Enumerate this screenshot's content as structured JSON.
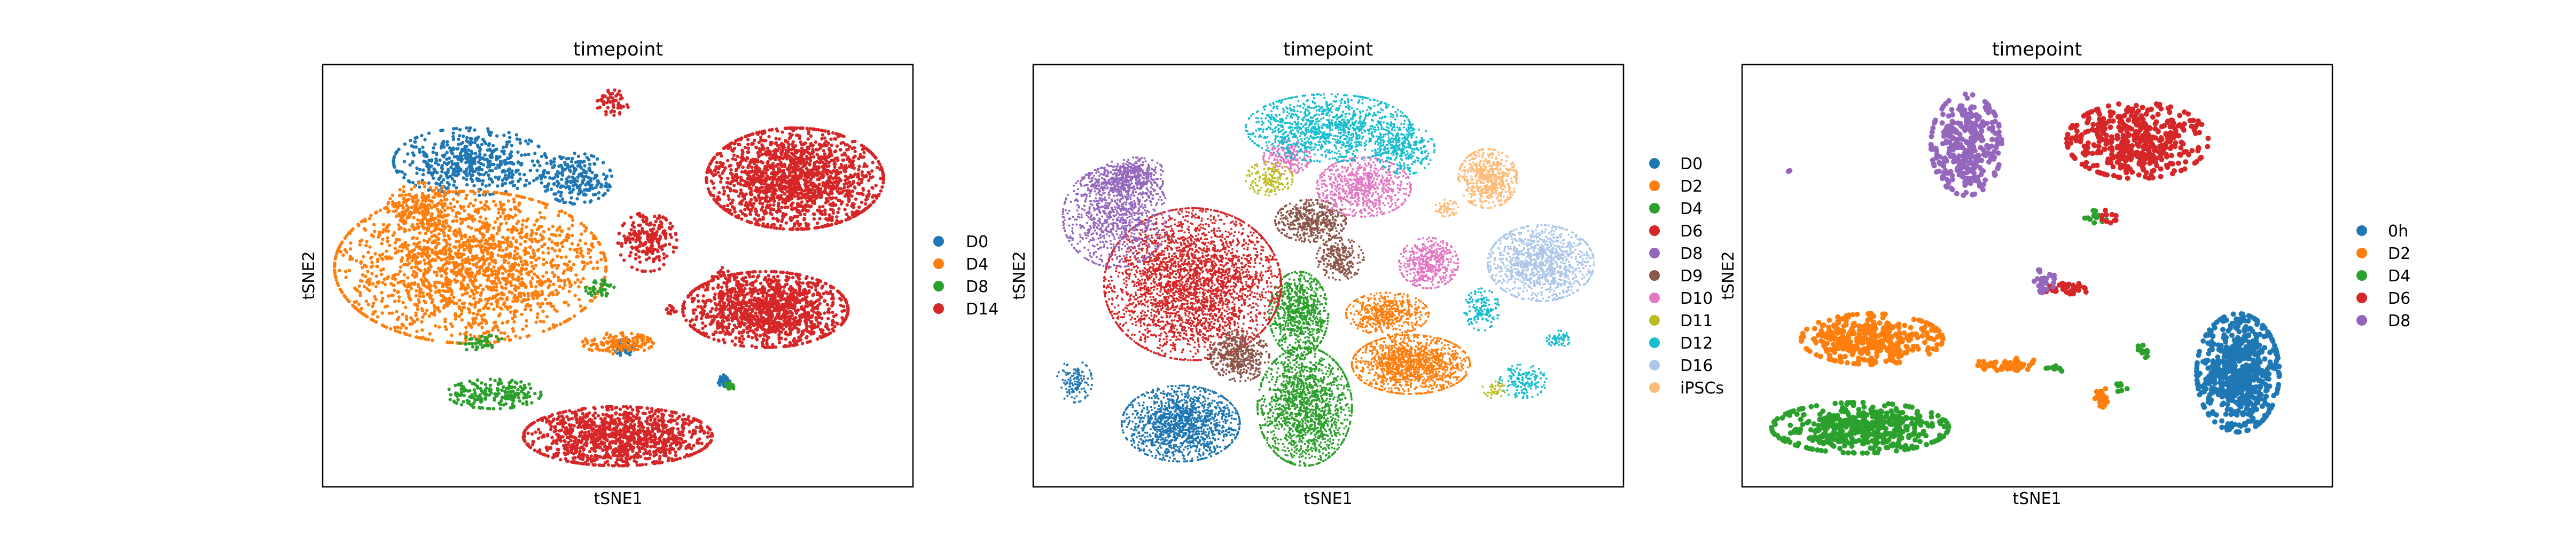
{
  "chart_data": [
    {
      "type": "scatter",
      "title": "timepoint",
      "xlabel": "tSNE1",
      "ylabel": "tSNE2",
      "grid": false,
      "legend_position": "right",
      "series": [
        {
          "name": "D0",
          "color": "#1f77b4",
          "clusters": [
            {
              "x": 0.25,
              "y": 0.77,
              "rx": 0.13,
              "ry": 0.08,
              "n": 520
            },
            {
              "x": 0.43,
              "y": 0.73,
              "rx": 0.06,
              "ry": 0.06,
              "n": 220
            },
            {
              "x": 0.51,
              "y": 0.33,
              "rx": 0.02,
              "ry": 0.02,
              "n": 50
            },
            {
              "x": 0.68,
              "y": 0.25,
              "rx": 0.01,
              "ry": 0.015,
              "n": 40
            }
          ]
        },
        {
          "name": "D4",
          "color": "#ff7f0e",
          "clusters": [
            {
              "x": 0.25,
              "y": 0.52,
              "rx": 0.23,
              "ry": 0.18,
              "n": 1900
            },
            {
              "x": 0.17,
              "y": 0.66,
              "rx": 0.06,
              "ry": 0.06,
              "n": 200
            },
            {
              "x": 0.5,
              "y": 0.34,
              "rx": 0.06,
              "ry": 0.025,
              "n": 150
            }
          ]
        },
        {
          "name": "D8",
          "color": "#2ca02c",
          "clusters": [
            {
              "x": 0.29,
              "y": 0.22,
              "rx": 0.08,
              "ry": 0.035,
              "n": 200
            },
            {
              "x": 0.47,
              "y": 0.47,
              "rx": 0.025,
              "ry": 0.02,
              "n": 40
            },
            {
              "x": 0.27,
              "y": 0.34,
              "rx": 0.04,
              "ry": 0.02,
              "n": 40
            },
            {
              "x": 0.69,
              "y": 0.24,
              "rx": 0.01,
              "ry": 0.01,
              "n": 20
            }
          ]
        },
        {
          "name": "D14",
          "color": "#d62728",
          "clusters": [
            {
              "x": 0.8,
              "y": 0.73,
              "rx": 0.15,
              "ry": 0.12,
              "n": 1700
            },
            {
              "x": 0.75,
              "y": 0.42,
              "rx": 0.14,
              "ry": 0.09,
              "n": 1300
            },
            {
              "x": 0.5,
              "y": 0.12,
              "rx": 0.16,
              "ry": 0.07,
              "n": 1200
            },
            {
              "x": 0.55,
              "y": 0.58,
              "rx": 0.05,
              "ry": 0.07,
              "n": 220
            },
            {
              "x": 0.49,
              "y": 0.91,
              "rx": 0.03,
              "ry": 0.03,
              "n": 60
            },
            {
              "x": 0.59,
              "y": 0.42,
              "rx": 0.01,
              "ry": 0.01,
              "n": 15
            },
            {
              "x": 0.68,
              "y": 0.5,
              "rx": 0.02,
              "ry": 0.02,
              "n": 20
            }
          ]
        }
      ]
    },
    {
      "type": "scatter",
      "title": "timepoint",
      "xlabel": "tSNE1",
      "ylabel": "tSNE2",
      "grid": false,
      "legend_position": "right",
      "series": [
        {
          "name": "D0",
          "color": "#1f77b4",
          "clusters": [
            {
              "x": 0.25,
              "y": 0.15,
              "rx": 0.1,
              "ry": 0.09,
              "n": 1400
            },
            {
              "x": 0.07,
              "y": 0.25,
              "rx": 0.03,
              "ry": 0.05,
              "n": 120
            }
          ]
        },
        {
          "name": "D2",
          "color": "#ff7f0e",
          "clusters": [
            {
              "x": 0.64,
              "y": 0.29,
              "rx": 0.1,
              "ry": 0.07,
              "n": 1300
            },
            {
              "x": 0.6,
              "y": 0.41,
              "rx": 0.07,
              "ry": 0.05,
              "n": 500
            }
          ]
        },
        {
          "name": "D4",
          "color": "#2ca02c",
          "clusters": [
            {
              "x": 0.46,
              "y": 0.19,
              "rx": 0.08,
              "ry": 0.14,
              "n": 1500
            },
            {
              "x": 0.45,
              "y": 0.41,
              "rx": 0.05,
              "ry": 0.1,
              "n": 800
            }
          ]
        },
        {
          "name": "D6",
          "color": "#d62728",
          "clusters": [
            {
              "x": 0.27,
              "y": 0.48,
              "rx": 0.15,
              "ry": 0.18,
              "n": 3200
            }
          ]
        },
        {
          "name": "D8",
          "color": "#9467bd",
          "clusters": [
            {
              "x": 0.14,
              "y": 0.64,
              "rx": 0.09,
              "ry": 0.12,
              "n": 900
            },
            {
              "x": 0.15,
              "y": 0.72,
              "rx": 0.07,
              "ry": 0.03,
              "n": 300
            },
            {
              "x": 0.17,
              "y": 0.75,
              "rx": 0.05,
              "ry": 0.03,
              "n": 200
            }
          ]
        },
        {
          "name": "D9",
          "color": "#8c564b",
          "clusters": [
            {
              "x": 0.35,
              "y": 0.31,
              "rx": 0.05,
              "ry": 0.06,
              "n": 450
            },
            {
              "x": 0.47,
              "y": 0.63,
              "rx": 0.06,
              "ry": 0.05,
              "n": 500
            },
            {
              "x": 0.52,
              "y": 0.54,
              "rx": 0.04,
              "ry": 0.05,
              "n": 250
            }
          ]
        },
        {
          "name": "D10",
          "color": "#e377c2",
          "clusters": [
            {
              "x": 0.56,
              "y": 0.71,
              "rx": 0.08,
              "ry": 0.07,
              "n": 700
            },
            {
              "x": 0.67,
              "y": 0.53,
              "rx": 0.05,
              "ry": 0.06,
              "n": 450
            },
            {
              "x": 0.43,
              "y": 0.78,
              "rx": 0.04,
              "ry": 0.04,
              "n": 200
            }
          ]
        },
        {
          "name": "D11",
          "color": "#bcbd22",
          "clusters": [
            {
              "x": 0.4,
              "y": 0.73,
              "rx": 0.04,
              "ry": 0.04,
              "n": 150
            },
            {
              "x": 0.78,
              "y": 0.23,
              "rx": 0.02,
              "ry": 0.02,
              "n": 40
            }
          ]
        },
        {
          "name": "D12",
          "color": "#17becf",
          "clusters": [
            {
              "x": 0.5,
              "y": 0.85,
              "rx": 0.14,
              "ry": 0.08,
              "n": 1200
            },
            {
              "x": 0.63,
              "y": 0.8,
              "rx": 0.05,
              "ry": 0.06,
              "n": 300
            },
            {
              "x": 0.76,
              "y": 0.42,
              "rx": 0.03,
              "ry": 0.05,
              "n": 150
            },
            {
              "x": 0.83,
              "y": 0.25,
              "rx": 0.04,
              "ry": 0.04,
              "n": 150
            },
            {
              "x": 0.89,
              "y": 0.35,
              "rx": 0.02,
              "ry": 0.02,
              "n": 60
            }
          ]
        },
        {
          "name": "D16",
          "color": "#aec7e8",
          "clusters": [
            {
              "x": 0.86,
              "y": 0.53,
              "rx": 0.09,
              "ry": 0.09,
              "n": 1100
            }
          ]
        },
        {
          "name": "iPSCs",
          "color": "#ffbb78",
          "clusters": [
            {
              "x": 0.77,
              "y": 0.73,
              "rx": 0.05,
              "ry": 0.07,
              "n": 600
            },
            {
              "x": 0.7,
              "y": 0.66,
              "rx": 0.02,
              "ry": 0.02,
              "n": 60
            }
          ]
        }
      ]
    },
    {
      "type": "scatter",
      "title": "timepoint",
      "xlabel": "tSNE1",
      "ylabel": "tSNE2",
      "grid": false,
      "legend_position": "right",
      "series": [
        {
          "name": "0h",
          "color": "#1f77b4",
          "clusters": [
            {
              "x": 0.84,
              "y": 0.27,
              "rx": 0.07,
              "ry": 0.14,
              "n": 650
            }
          ]
        },
        {
          "name": "D2",
          "color": "#ff7f0e",
          "clusters": [
            {
              "x": 0.22,
              "y": 0.35,
              "rx": 0.12,
              "ry": 0.06,
              "n": 380
            },
            {
              "x": 0.45,
              "y": 0.29,
              "rx": 0.06,
              "ry": 0.015,
              "n": 60
            },
            {
              "x": 0.61,
              "y": 0.21,
              "rx": 0.012,
              "ry": 0.025,
              "n": 30
            }
          ]
        },
        {
          "name": "D4",
          "color": "#2ca02c",
          "clusters": [
            {
              "x": 0.2,
              "y": 0.14,
              "rx": 0.15,
              "ry": 0.06,
              "n": 480
            },
            {
              "x": 0.6,
              "y": 0.64,
              "rx": 0.02,
              "ry": 0.015,
              "n": 15
            },
            {
              "x": 0.68,
              "y": 0.32,
              "rx": 0.01,
              "ry": 0.03,
              "n": 12
            },
            {
              "x": 0.53,
              "y": 0.28,
              "rx": 0.02,
              "ry": 0.01,
              "n": 10
            },
            {
              "x": 0.64,
              "y": 0.24,
              "rx": 0.015,
              "ry": 0.02,
              "n": 8
            }
          ]
        },
        {
          "name": "D6",
          "color": "#d62728",
          "clusters": [
            {
              "x": 0.67,
              "y": 0.82,
              "rx": 0.12,
              "ry": 0.09,
              "n": 450
            },
            {
              "x": 0.55,
              "y": 0.47,
              "rx": 0.04,
              "ry": 0.015,
              "n": 35
            },
            {
              "x": 0.62,
              "y": 0.64,
              "rx": 0.02,
              "ry": 0.015,
              "n": 10
            }
          ]
        },
        {
          "name": "D8",
          "color": "#9467bd",
          "clusters": [
            {
              "x": 0.38,
              "y": 0.81,
              "rx": 0.06,
              "ry": 0.12,
              "n": 330
            },
            {
              "x": 0.51,
              "y": 0.49,
              "rx": 0.02,
              "ry": 0.03,
              "n": 30
            },
            {
              "x": 0.08,
              "y": 0.75,
              "rx": 0.005,
              "ry": 0.005,
              "n": 2
            }
          ]
        }
      ]
    }
  ]
}
